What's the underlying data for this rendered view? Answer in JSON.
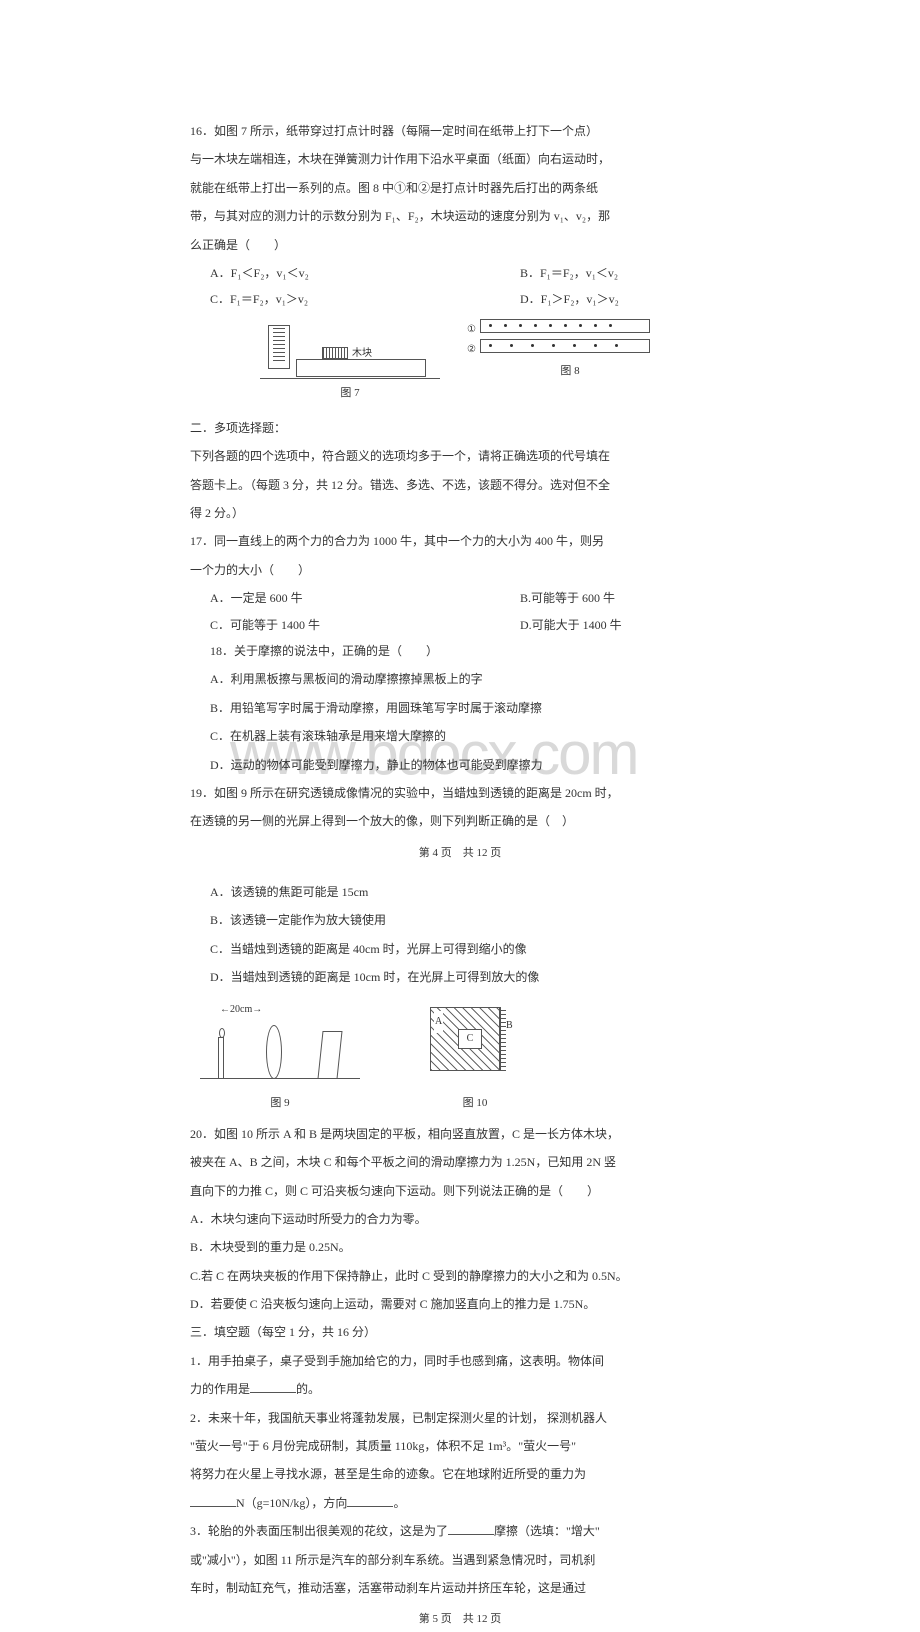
{
  "q16": {
    "stem1": "16．如图 7 所示，纸带穿过打点计时器（每隔一定时间在纸带上打下一个点）",
    "stem2": "与一木块左端相连，木块在弹簧测力计作用下沿水平桌面（纸面）向右运动时，",
    "stem3": "就能在纸带上打出一系列的点。图 8 中①和②是打点计时器先后打出的两条纸",
    "stem4": "带，与其对应的测力计的示数分别为 F₁、F₂，木块运动的速度分别为 v₁、v₂，那",
    "stem5": "么正确是（　　）",
    "optA": "A．F₁＜F₂，v₁＜v₂",
    "optB": "B．F₁＝F₂，v₁＜v₂",
    "optC": "C．F₁＝F₂，v₁＞v₂",
    "optD": "D．F₁＞F₂，v₁＞v₂",
    "blockLabel": "木块",
    "fig7cap": "图 7",
    "fig8cap": "图 8",
    "tape1": "①",
    "tape2": "②"
  },
  "sec2": {
    "title": "二．多项选择题：",
    "desc1": "下列各题的四个选项中，符合题义的选项均多于一个，请将正确选项的代号填在",
    "desc2": "答题卡上。（每题 3 分，共 12 分。错选、多选、不选，该题不得分。选对但不全",
    "desc3": "得 2 分。）"
  },
  "q17": {
    "stem1": "17．同一直线上的两个力的合力为 1000 牛，其中一个力的大小为 400 牛，则另",
    "stem2": "一个力的大小（　　）",
    "optA": "A．一定是 600 牛",
    "optB": "B.可能等于 600 牛",
    "optC": "C．可能等于 1400 牛",
    "optD": "D.可能大于 1400 牛"
  },
  "q18": {
    "stem": "18．关于摩擦的说法中，正确的是（　　）",
    "optA": "A．利用黑板擦与黑板间的滑动摩擦擦掉黑板上的字",
    "optB": "B．用铅笔写字时属于滑动摩擦，用圆珠笔写字时属于滚动摩擦",
    "optC": "C．在机器上装有滚珠轴承是用来增大摩擦的",
    "optD": "D．运动的物体可能受到摩擦力，静止的物体也可能受到摩擦力"
  },
  "q19": {
    "stem1": "19．如图 9 所示在研究透镜成像情况的实验中，当蜡烛到透镜的距离是 20cm 时，",
    "stem2": "在透镜的另一侧的光屏上得到一个放大的像，则下列判断正确的是（　）",
    "optA": "A．该透镜的焦距可能是 15cm",
    "optB": "B．该透镜一定能作为放大镜使用",
    "optC": "C．当蜡烛到透镜的距离是 40cm 时，光屏上可得到缩小的像",
    "optD": "D．当蜡烛到透镜的距离是 10cm 时，在光屏上可得到放大的像",
    "arrows": "←20cm→",
    "fig9cap": "图 9",
    "fig10cap": "图 10",
    "labA": "A",
    "labB": "B",
    "labC": "C"
  },
  "footer1": "第 4 页　共 12 页",
  "watermark": "www.bdocx.com",
  "q20": {
    "stem1": "20．如图 10 所示 A 和 B 是两块固定的平板，相向竖直放置，C 是一长方体木块，",
    "stem2": "被夹在 A、B 之间，木块 C 和每个平板之间的滑动摩擦力为 1.25N，已知用 2N 竖",
    "stem3": "直向下的力推 C，则 C 可沿夹板匀速向下运动。则下列说法正确的是（　　）",
    "optA": "A．木块匀速向下运动时所受力的合力为零。",
    "optB": "B．木块受到的重力是 0.25N。",
    "optC": "C.若 C 在两块夹板的作用下保持静止，此时 C 受到的静摩擦力的大小之和为 0.5N。",
    "optD": "D．若要使 C 沿夹板匀速向上运动，需要对 C 施加竖直向上的推力是 1.75N。"
  },
  "sec3": {
    "title": "三．填空题（每空 1 分，共 16 分）",
    "q1a": "1．用手拍桌子，桌子受到手施加给它的力，同时手也感到痛，这表明。物体间",
    "q1b": "力的作用是",
    "q1c": "的。",
    "q2a": "2．未来十年，我国航天事业将蓬勃发展，已制定探测火星的计划， 探测机器人",
    "q2b": "\"萤火一号\"于 6 月份完成研制，其质量 110kg，体积不足 1m³。\"萤火一号\"",
    "q2c": "将努力在火星上寻找水源，甚至是生命的迹象。它在地球附近所受的重力为",
    "q2d": "N（g=10N/kg），方向",
    "q2e": "。",
    "q3a": "3．轮胎的外表面压制出很美观的花纹，这是为了",
    "q3b": "摩擦（选填：\"增大\"",
    "q3c": "或\"减小\"），如图 11 所示是汽车的部分刹车系统。当遇到紧急情况时，司机刹",
    "q3d": "车时，制动缸充气，推动活塞，活塞带动刹车片运动并挤压车轮，这是通过"
  },
  "footer2": "第 5 页　共 12 页"
}
